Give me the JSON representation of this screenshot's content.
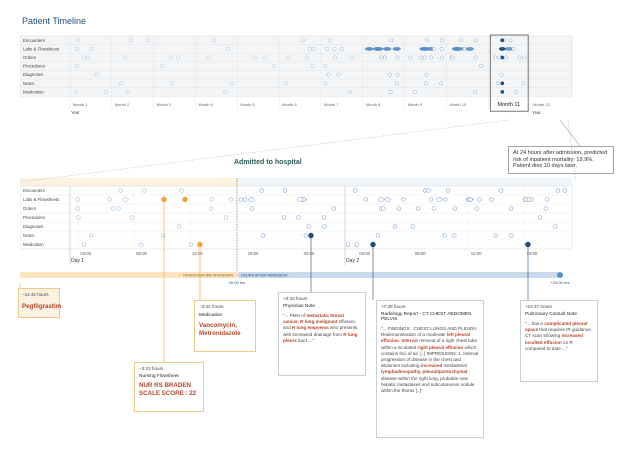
{
  "page": {
    "title": "Patient Timeline"
  },
  "row_labels": [
    "Encounters",
    "Labs & Flowsheets",
    "Orders",
    "Procedures",
    "Diagnoses",
    "Notes",
    "Medication"
  ],
  "overview": {
    "months": [
      "Month 1",
      "Month 2",
      "Month 3",
      "Month 4",
      "Month 5",
      "Month 6",
      "Month 7",
      "Month 8",
      "Month 9",
      "Month 10",
      "Month 11",
      "Month 12"
    ],
    "year_labels": [
      "Year",
      "Year"
    ],
    "highlight_month": "Month 11"
  },
  "callout": {
    "text": "At 24 hours after admission, predicted risk of inpatient mortality: 19.9%. Patient dies 10 days later."
  },
  "admission": {
    "label": "Admitted to hospital"
  },
  "detail": {
    "times": [
      "04:00",
      "08:00",
      "12:00",
      "16:00",
      "20:00",
      "04:00",
      "08:00",
      "12:00",
      "16:00"
    ],
    "days": [
      "Day 1",
      "Day 2"
    ],
    "before_label": "← HOURS BEFORE ADMISSION",
    "after_label": "HOURS AFTER ADMISSION →",
    "zero_label": "00.00 hrs",
    "end_label": "+24.00 hrs"
  },
  "cards": {
    "pegfil": {
      "time": "−11:42 hours",
      "name": "Pegfilgrastim"
    },
    "nursing": {
      "time": "−3:23 hours",
      "title": "Nursing Flowsheet",
      "value": "NUR RS BRADEN SCALE SCORE : 22"
    },
    "medication": {
      "time": "−3:42 hours",
      "title": "Medication",
      "value": "Vancomycin, Metronidazole"
    },
    "physician": {
      "time": "+3:33 hours",
      "title": "Physician Note",
      "p1": "\"... PMH of ",
      "h1": "metastatic breast cancer, R lung malignant",
      "p2": " effusion, and ",
      "h2": "R lung empyema",
      "p3": " who presents with increased drainage from ",
      "h3": "R lung pleurx",
      "p4": " tract ...\""
    },
    "radiology": {
      "time": "+7:38 hours",
      "title": "Radiology Report - CT CHEST ABDOMEN PELVIS",
      "p1": "\"... FINDINGS : CHEST LUNGS AND PLEURA: Redemonstration of a moderate ",
      "h1": "left pleural effusion",
      "p2": ". ",
      "h2": "Interval",
      "p3": " removal of a right chest tube within a loculated ",
      "h3": "right pleural effusion",
      "p4": " which contains foci of air. [..] IMPRESSION: 1. Interval progression of disease in the chest and abdomen including ",
      "h4": "increased",
      "p5": " mediastinal ",
      "h5": "lymphadenopathy, pleural/parenchymal",
      "p6": " disease within the right lung, probable new hepatic metastases and subcutaneous nodule within the thorax [..]\""
    },
    "pulmonary": {
      "time": "+22:47 hours",
      "title": "Pulmonary Consult Note",
      "p1": "\"... has a ",
      "h1": "complicated pleural space",
      "p2": " that requires IR guidance. CT scan showing ",
      "h2": "increased loculted effusion",
      "p3": " on R compared to date ...\""
    }
  },
  "colors": {
    "title": "#1f4e79",
    "event_blue": "#5b8fc7",
    "event_dark": "#1f4e79",
    "orange": "#f0a23c",
    "orange_light": "#fbe3c0",
    "highlight_red": "#b8432a",
    "teal_label": "#2c5f5a"
  },
  "events": {
    "overview_density": [
      0.5,
      0.4,
      0.3,
      0.4,
      0.3,
      0.5,
      0.7,
      1.0,
      1.0,
      0.9,
      0.9
    ],
    "detail_density": [
      [
        0.3,
        0.5,
        0.2,
        0.1,
        0.6,
        0.2,
        0.4,
        0.1,
        0.5,
        0.3,
        0.6,
        0.3
      ],
      [
        0.8,
        0.7,
        1.0,
        0.9,
        1.0,
        0.9,
        0.7,
        0.9,
        1.0,
        0.9,
        1.0,
        0.9
      ],
      [
        0.5,
        0.6,
        0.4,
        0.7,
        0.8,
        0.5,
        0.4,
        0.6,
        0.5,
        0.7,
        0.6,
        0.5
      ],
      [
        0.1,
        0.2,
        0.1,
        0.2,
        0.3,
        0.4,
        0.2,
        0.1,
        0.2,
        0.2,
        0.1,
        0.3
      ],
      [
        0.2,
        0.1,
        0.2,
        0.3,
        0.1,
        0.3,
        0.2,
        0.1,
        0.2,
        0.1,
        0.2,
        0.1
      ],
      [
        0.1,
        0.2,
        0.2,
        0.1,
        0.3,
        0.6,
        0.5,
        0.4,
        0.4,
        0.5,
        0.3,
        0.3
      ],
      [
        0.1,
        0.2,
        0.4,
        0.1,
        0.2,
        0.3,
        0.4,
        0.3,
        0.6,
        0.4,
        0.3,
        0.2
      ]
    ]
  }
}
